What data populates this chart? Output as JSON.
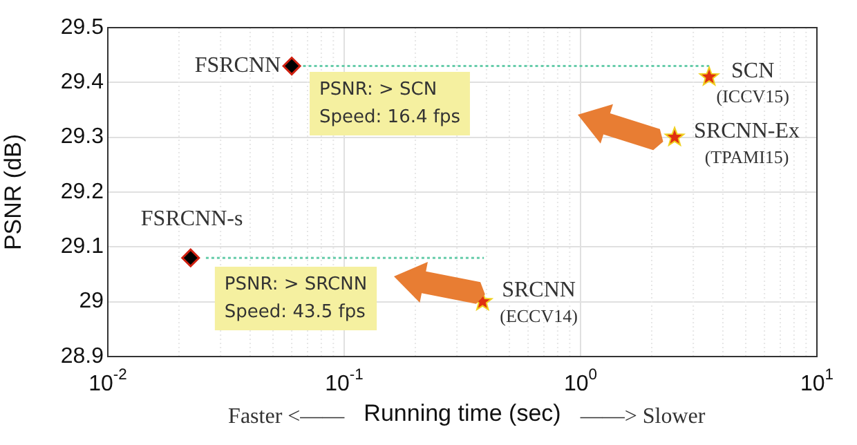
{
  "chart_data": {
    "type": "scatter",
    "xlabel": "Running time (sec)",
    "ylabel": "PSNR (dB)",
    "log": "x",
    "grid": true,
    "legend": false,
    "xlim": [
      0.01,
      10
    ],
    "xticks": [
      {
        "value": 0.01,
        "label": "10$^{-2}$"
      },
      {
        "value": 0.1,
        "label": "10$^{-1}$"
      },
      {
        "value": 1,
        "label": "10$^{0}$"
      },
      {
        "value": 10,
        "label": "10$^{1}$"
      }
    ],
    "ylim": [
      28.9,
      29.5
    ],
    "yticks": [
      28.9,
      29,
      29.1,
      29.2,
      29.3,
      29.4,
      29.5
    ],
    "series": [
      {
        "type": "line",
        "color": "#66ccaa",
        "line_style": "dotted",
        "marker": "none",
        "x": [
          0.067,
          3.5
        ],
        "values": [
          29.43,
          29.43
        ]
      },
      {
        "type": "line",
        "color": "#66ccaa",
        "line_style": "dotted",
        "marker": "none",
        "x": [
          0.026,
          0.39
        ],
        "values": [
          29.08,
          29.08
        ]
      },
      {
        "name": "FSRCNN",
        "color": "#000000",
        "marker": "diamond",
        "x": [
          0.06
        ],
        "values": [
          29.43
        ]
      },
      {
        "name": "FSRCNN-s",
        "color": "#000000",
        "marker": "diamond",
        "x": [
          0.0224
        ],
        "values": [
          29.08
        ]
      },
      {
        "name": "SCN\n(ICCV15)",
        "color": "#e03010",
        "marker": "star",
        "x": [
          3.5
        ],
        "values": [
          29.41
        ]
      },
      {
        "name": "SRCNN-Ex\n(TPAMI15)",
        "color": "#e03010",
        "marker": "star",
        "x": [
          2.5
        ],
        "values": [
          29.3
        ]
      },
      {
        "name": "SRCNN\n(ECCV14)",
        "color": "#e03010",
        "marker": "star",
        "x": [
          0.385
        ],
        "values": [
          29
        ]
      }
    ],
    "annotations": [
      "Faster <——",
      "——> Slower",
      "PSNR: > SCN\nSpeed: 16.4 fps",
      "PSNR: > SRCNN\nSpeed: 43.5 fps"
    ]
  }
}
